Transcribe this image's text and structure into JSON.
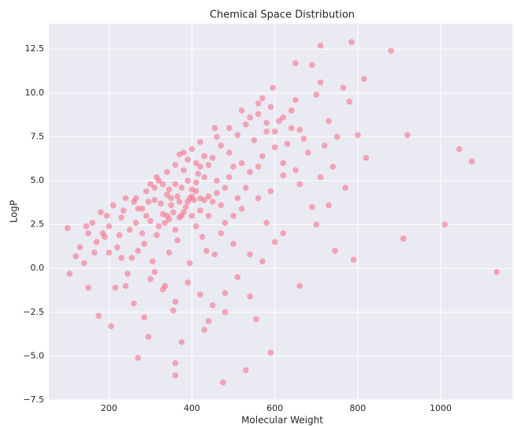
{
  "chart_data": {
    "type": "scatter",
    "title": "Chemical Space Distribution",
    "x_label": "Molecular Weight",
    "y_label": "LogP",
    "color": "#f7728a",
    "grid": true,
    "xlim": [
      55,
      1173
    ],
    "ylim": [
      -7.5,
      13.95
    ],
    "xticks": [
      200,
      400,
      600,
      800,
      1000
    ],
    "yticks": [
      {
        "value": -7.5,
        "label": "−7.5"
      },
      {
        "value": -5,
        "label": "−5.0"
      },
      {
        "value": -2.5,
        "label": "−2.5"
      },
      {
        "value": 0,
        "label": "0.0"
      },
      2.5,
      {
        "value": 5,
        "label": "5.0"
      },
      7.5,
      {
        "value": 10,
        "label": "10.0"
      },
      12.5
    ],
    "x": [
      880,
      785,
      710,
      1135,
      1045,
      1075,
      1010,
      910,
      920,
      820,
      815,
      790,
      745,
      700,
      475,
      360,
      360,
      270,
      530,
      590,
      105,
      100,
      175,
      205,
      295,
      375,
      430,
      650,
      690,
      710,
      595,
      570,
      660,
      555,
      480,
      150,
      240,
      140,
      120,
      765,
      780,
      730,
      750,
      800,
      770,
      730,
      690,
      660,
      620,
      640,
      150,
      160,
      170,
      180,
      190,
      200,
      210,
      220,
      230,
      240,
      250,
      260,
      270,
      280,
      290,
      300,
      310,
      320,
      330,
      340,
      350,
      360,
      370,
      380,
      390,
      400,
      410,
      420,
      430,
      440,
      450,
      460,
      470,
      480,
      490,
      500,
      510,
      520,
      530,
      540,
      550,
      560,
      570,
      580,
      590,
      600,
      610,
      620,
      630,
      640,
      280,
      300,
      320,
      340,
      360,
      380,
      400,
      420,
      440,
      460,
      270,
      290,
      310,
      330,
      350,
      370,
      390,
      410,
      430,
      450,
      325,
      335,
      345,
      355,
      365,
      375,
      385,
      395,
      405,
      415,
      255,
      265,
      285,
      305,
      315,
      345,
      365,
      395,
      425,
      455,
      480,
      500,
      520,
      540,
      560,
      580,
      600,
      470,
      490,
      510,
      300,
      330,
      360,
      390,
      420,
      450,
      480,
      510,
      540,
      570,
      200,
      215,
      230,
      245,
      260,
      285,
      310,
      335,
      355,
      440,
      520,
      540,
      560,
      580,
      600,
      620,
      650,
      670,
      700,
      720,
      500,
      530,
      560,
      590,
      620,
      650,
      680,
      710,
      740,
      660,
      380,
      400,
      420,
      440,
      460,
      470,
      490,
      410,
      435,
      455,
      130,
      145,
      165,
      185,
      195,
      225,
      235,
      265,
      295,
      315,
      340,
      360,
      370,
      390,
      400,
      410,
      420,
      430,
      345,
      375
    ],
    "values": [
      12.4,
      12.9,
      12.7,
      -0.2,
      6.8,
      6.1,
      2.5,
      1.7,
      7.6,
      6.3,
      10.8,
      0.5,
      1.0,
      2.5,
      -6.5,
      -6.1,
      -5.4,
      -5.1,
      -5.8,
      -4.8,
      -0.3,
      2.3,
      -2.7,
      -3.3,
      -3.9,
      -4.2,
      -3.5,
      11.7,
      11.6,
      10.6,
      10.3,
      9.7,
      -1.0,
      -2.9,
      -2.5,
      -1.1,
      -1.0,
      0.3,
      0.7,
      10.3,
      9.5,
      8.4,
      7.5,
      7.6,
      4.6,
      3.6,
      3.5,
      4.8,
      2.0,
      9.0,
      2.0,
      2.6,
      1.5,
      3.2,
      1.8,
      2.4,
      3.6,
      1.2,
      2.9,
      4.0,
      2.2,
      3.8,
      1.0,
      3.4,
      4.4,
      2.7,
      3.9,
      5.0,
      3.1,
      4.2,
      3.6,
      4.8,
      2.9,
      5.6,
      3.8,
      4.5,
      6.0,
      3.3,
      5.2,
      4.1,
      6.3,
      5.0,
      7.0,
      4.6,
      6.6,
      5.8,
      7.6,
      6.0,
      8.2,
      5.5,
      7.3,
      8.8,
      6.4,
      7.8,
      9.2,
      6.9,
      8.4,
      5.3,
      7.1,
      8.0,
      2.0,
      4.8,
      2.4,
      3.0,
      2.2,
      3.2,
      3.0,
      4.0,
      3.0,
      4.3,
      3.4,
      3.0,
      4.6,
      4.8,
      4.0,
      3.8,
      5.0,
      4.9,
      6.4,
      3.8,
      3.7,
      2.6,
      4.5,
      3.2,
      4.1,
      4.6,
      3.5,
      4.0,
      3.9,
      5.4,
      0.6,
      2.6,
      1.4,
      0.4,
      1.9,
      0.9,
      1.6,
      0.3,
      1.8,
      0.8,
      2.6,
      1.4,
      3.4,
      0.8,
      4.0,
      2.6,
      1.5,
      3.6,
      8.0,
      4.0,
      -0.6,
      -1.2,
      -1.9,
      -0.8,
      -1.5,
      -2.1,
      -1.4,
      -0.5,
      -1.6,
      0.4,
      0.9,
      -1.1,
      0.6,
      -0.3,
      -2.0,
      -2.8,
      -0.2,
      -1.0,
      -2.4,
      -3.0,
      9.0,
      8.6,
      9.4,
      8.3,
      7.8,
      8.6,
      9.6,
      7.4,
      9.9,
      7.0,
      3.0,
      4.6,
      5.8,
      4.4,
      6.0,
      5.6,
      6.6,
      5.2,
      5.8,
      7.9,
      6.6,
      6.8,
      7.2,
      5.9,
      7.5,
      2.0,
      5.2,
      2.4,
      1.0,
      8.0,
      1.2,
      2.4,
      0.9,
      2.0,
      3.0,
      1.9,
      3.3,
      4.0,
      3.8,
      5.2,
      5.5,
      5.9,
      6.5,
      6.2,
      4.1,
      4.4,
      5.8,
      3.9,
      2.8,
      3.0
    ]
  }
}
